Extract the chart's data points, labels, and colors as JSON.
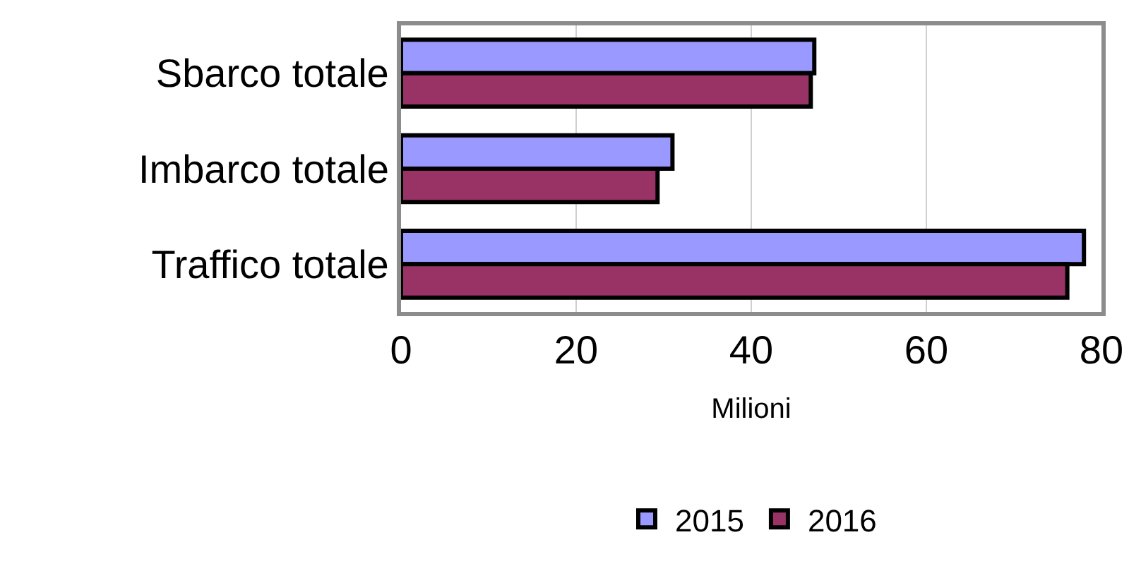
{
  "chart_data": {
    "type": "bar",
    "orientation": "horizontal",
    "xlabel": "Milioni",
    "categories": [
      "Sbarco totale",
      "Imbarco totale",
      "Traffico totale"
    ],
    "series": [
      {
        "name": "2015",
        "color": "#9999ff",
        "values": [
          47.2,
          31.0,
          78.0
        ]
      },
      {
        "name": "2016",
        "color": "#993366",
        "values": [
          46.8,
          29.3,
          76.1
        ]
      }
    ],
    "xlim": [
      0,
      80
    ],
    "xticks": [
      0,
      20,
      40,
      60,
      80
    ],
    "grid": "x",
    "legend": "bottom"
  }
}
